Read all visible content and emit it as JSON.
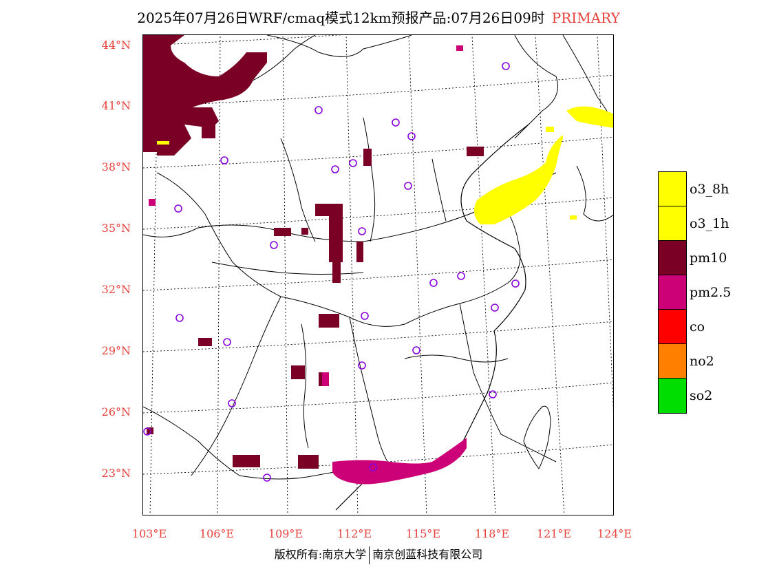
{
  "header": {
    "title": "2025年07月26日WRF/cmaq模式12km预报产品:07月26日09时",
    "tag": "PRIMARY"
  },
  "map": {
    "lat_labels": [
      "44°N",
      "41°N",
      "38°N",
      "35°N",
      "32°N",
      "29°N",
      "26°N",
      "23°N"
    ],
    "lon_labels": [
      "103°E",
      "106°E",
      "109°E",
      "112°E",
      "115°E",
      "118°E",
      "121°E",
      "124°E"
    ]
  },
  "legend": [
    {
      "label": "o3_8h",
      "color": "#ffff00"
    },
    {
      "label": "o3_1h",
      "color": "#ffff00"
    },
    {
      "label": "pm10",
      "color": "#7a0026"
    },
    {
      "label": "pm2.5",
      "color": "#cc0077"
    },
    {
      "label": "co",
      "color": "#ff0000"
    },
    {
      "label": "no2",
      "color": "#ff8000"
    },
    {
      "label": "so2",
      "color": "#00dd00"
    }
  ],
  "colors": {
    "pm10": "#7a0026",
    "pm25": "#cc0077",
    "o3": "#ffff00",
    "station": "#8800dd",
    "label": "#e8403a"
  },
  "footer": {
    "left": "版权所有:南京大学",
    "right": "南京创蓝科技有限公司"
  }
}
